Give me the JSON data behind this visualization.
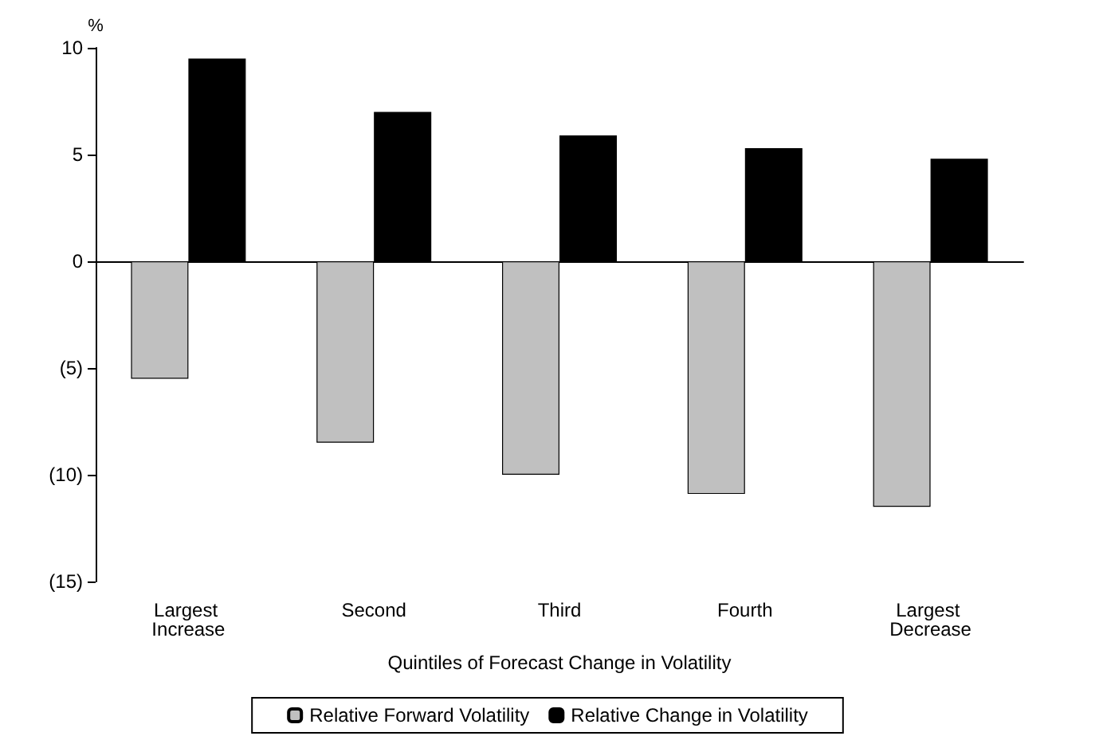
{
  "chart_data": {
    "type": "bar",
    "ylabel": "%",
    "xlabel": "Quintiles of Forecast Change in Volatility",
    "categories": [
      "Largest Increase",
      "Second",
      "Third",
      "Fourth",
      "Largest Decrease"
    ],
    "series": [
      {
        "name": "Relative Forward Volatility",
        "color": "#c0c0c0",
        "values": [
          -5.5,
          -8.5,
          -10,
          -10.9,
          -11.5
        ]
      },
      {
        "name": "Relative Change in Volatility",
        "color": "#000000",
        "values": [
          9.5,
          7.0,
          5.9,
          5.3,
          4.8
        ]
      }
    ],
    "ylim": [
      -15,
      10
    ],
    "yticks": [
      {
        "value": -15,
        "label": "(15)"
      },
      {
        "value": -10,
        "label": "(10)"
      },
      {
        "value": -5,
        "label": "(5)"
      },
      0,
      5,
      10
    ],
    "legend": "bottom"
  }
}
